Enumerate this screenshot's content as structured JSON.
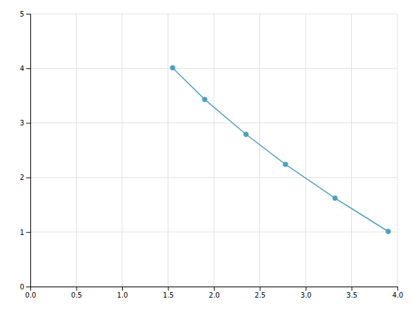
{
  "chart_data": {
    "type": "line",
    "x": [
      1.55,
      1.9,
      2.35,
      2.78,
      3.32,
      3.9
    ],
    "values": [
      4.01,
      3.43,
      2.79,
      2.24,
      1.62,
      1.01
    ],
    "color": "#4f9ec4",
    "marker": "circle",
    "xlim": [
      0.0,
      4.0
    ],
    "ylim": [
      0,
      5
    ],
    "xticks": [
      {
        "value": 0.0,
        "label": "0.0"
      },
      0.5,
      {
        "value": 1.0,
        "label": "1.0"
      },
      1.5,
      {
        "value": 2.0,
        "label": "2.0"
      },
      2.5,
      {
        "value": 3.0,
        "label": "3.0"
      },
      3.5,
      {
        "value": 4.0,
        "label": "4.0"
      }
    ],
    "yticks": [
      0,
      1,
      2,
      3,
      4,
      5
    ],
    "grid": true
  }
}
